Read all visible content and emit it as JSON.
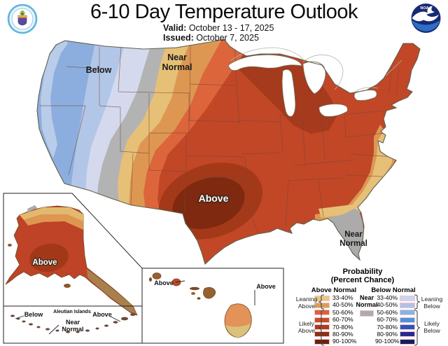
{
  "header": {
    "title": "6-10 Day Temperature Outlook",
    "valid_label": "Valid:",
    "valid_value": "October 13 - 17, 2025",
    "issued_label": "Issued:",
    "issued_value": "October 7, 2025"
  },
  "logos": {
    "noaa_text": "NOAA"
  },
  "conus": {
    "label_below": "Below",
    "label_near_line1": "Near",
    "label_near_line2": "Normal",
    "label_above": "Above",
    "label_fl_near_line1": "Near",
    "label_fl_near_line2": "Normal"
  },
  "alaska": {
    "label_above": "Above",
    "aleutians_title": "Aleutian Islands",
    "label_below": "Below",
    "label_near_line1": "Near",
    "label_near_line2": "Normal",
    "label_above_east": "Above"
  },
  "hawaii": {
    "label_above_west": "Above",
    "label_above_east": "Above"
  },
  "legend": {
    "title_line1": "Probability",
    "title_line2": "(Percent Chance)",
    "above_header": "Above Normal",
    "below_header": "Below Normal",
    "near_line1": "Near",
    "near_line2": "Normal",
    "near_color": "#ACACAC",
    "ranges": [
      "33-40%",
      "40-50%",
      "50-60%",
      "60-70%",
      "70-80%",
      "80-90%",
      "90-100%"
    ],
    "above_colors": [
      "#E9C87E",
      "#D6A054",
      "#E0603A",
      "#C44E28",
      "#AA3E1E",
      "#8B3114",
      "#672408"
    ],
    "below_colors": [
      "#CAD5F0",
      "#AEC2E8",
      "#7FB8E8",
      "#4E92DC",
      "#2C55B8",
      "#272A8E",
      "#1A1C5E"
    ],
    "leaning_above_line1": "Leaning",
    "leaning_above_line2": "Above",
    "likely_above_line1": "Likely",
    "likely_above_line2": "Above",
    "leaning_below_line1": "Leaning",
    "leaning_below_line2": "Below",
    "likely_below_line1": "Likely",
    "likely_below_line2": "Below"
  },
  "map_colors": {
    "above_33_40": "#E7C077",
    "above_40_50": "#DD9752",
    "above_50_60": "#DC653C",
    "above_60_70": "#C14727",
    "above_70_80": "#A33918",
    "above_80_90": "#7E2910",
    "below_33_40": "#D4D9EE",
    "below_40_50": "#B2C7E8",
    "below_50_60": "#8CAEDE",
    "near_normal": "#B3B3B3"
  }
}
